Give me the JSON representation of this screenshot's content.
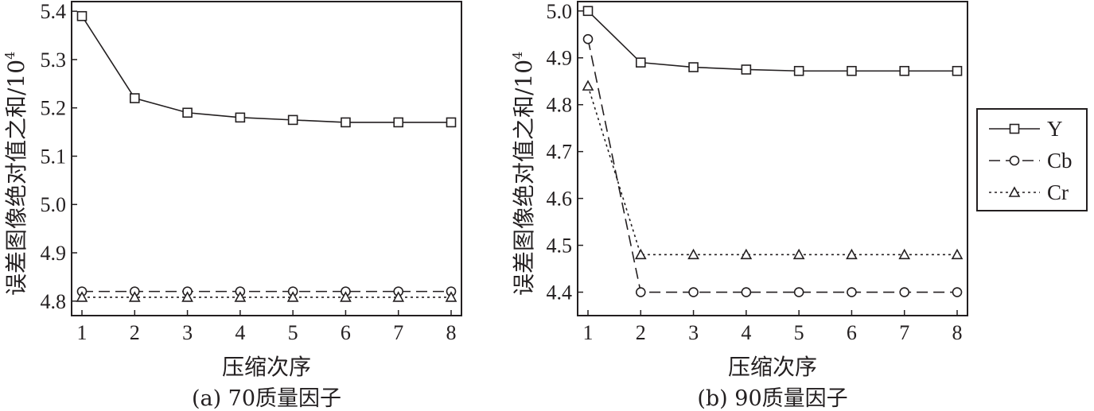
{
  "chart_data": [
    {
      "type": "line",
      "caption": "(a) 70质量因子",
      "xlabel": "压缩次序",
      "ylabel": "误差图像绝对值之和/10",
      "ylabel_exp": "4",
      "x": [
        1,
        2,
        3,
        4,
        5,
        6,
        7,
        8
      ],
      "xticks": [
        "1",
        "2",
        "3",
        "4",
        "5",
        "6",
        "7",
        "8"
      ],
      "yticks": [
        "4.8",
        "4.9",
        "5.0",
        "5.1",
        "5.2",
        "5.3",
        "5.4"
      ],
      "ylim": [
        4.77,
        5.42
      ],
      "series": [
        {
          "name": "Y",
          "marker": "square",
          "dash": "solid",
          "values": [
            5.39,
            5.22,
            5.19,
            5.18,
            5.175,
            5.17,
            5.17,
            5.17
          ]
        },
        {
          "name": "Cb",
          "marker": "circle",
          "dash": "dashed",
          "values": [
            4.82,
            4.82,
            4.82,
            4.82,
            4.82,
            4.82,
            4.82,
            4.82
          ]
        },
        {
          "name": "Cr",
          "marker": "triangle",
          "dash": "dotted",
          "values": [
            4.808,
            4.808,
            4.808,
            4.808,
            4.808,
            4.808,
            4.808,
            4.808
          ]
        }
      ]
    },
    {
      "type": "line",
      "caption": "(b) 90质量因子",
      "xlabel": "压缩次序",
      "ylabel": "误差图像绝对值之和/10",
      "ylabel_exp": "4",
      "x": [
        1,
        2,
        3,
        4,
        5,
        6,
        7,
        8
      ],
      "xticks": [
        "1",
        "2",
        "3",
        "4",
        "5",
        "6",
        "7",
        "8"
      ],
      "yticks": [
        "4.4",
        "4.5",
        "4.6",
        "4.7",
        "4.8",
        "4.9",
        "5.0"
      ],
      "ylim": [
        4.35,
        5.02
      ],
      "series": [
        {
          "name": "Y",
          "marker": "square",
          "dash": "solid",
          "values": [
            5.0,
            4.89,
            4.88,
            4.875,
            4.872,
            4.872,
            4.872,
            4.872
          ]
        },
        {
          "name": "Cb",
          "marker": "circle",
          "dash": "dashed",
          "values": [
            4.94,
            4.4,
            4.4,
            4.4,
            4.4,
            4.4,
            4.4,
            4.4
          ]
        },
        {
          "name": "Cr",
          "marker": "triangle",
          "dash": "dotted",
          "values": [
            4.84,
            4.48,
            4.48,
            4.48,
            4.48,
            4.48,
            4.48,
            4.48
          ]
        }
      ]
    }
  ],
  "legend": {
    "placement": "right",
    "items": [
      {
        "name": "Y",
        "marker": "square",
        "dash": "solid"
      },
      {
        "name": "Cb",
        "marker": "circle",
        "dash": "dashed"
      },
      {
        "name": "Cr",
        "marker": "triangle",
        "dash": "dotted"
      }
    ]
  }
}
